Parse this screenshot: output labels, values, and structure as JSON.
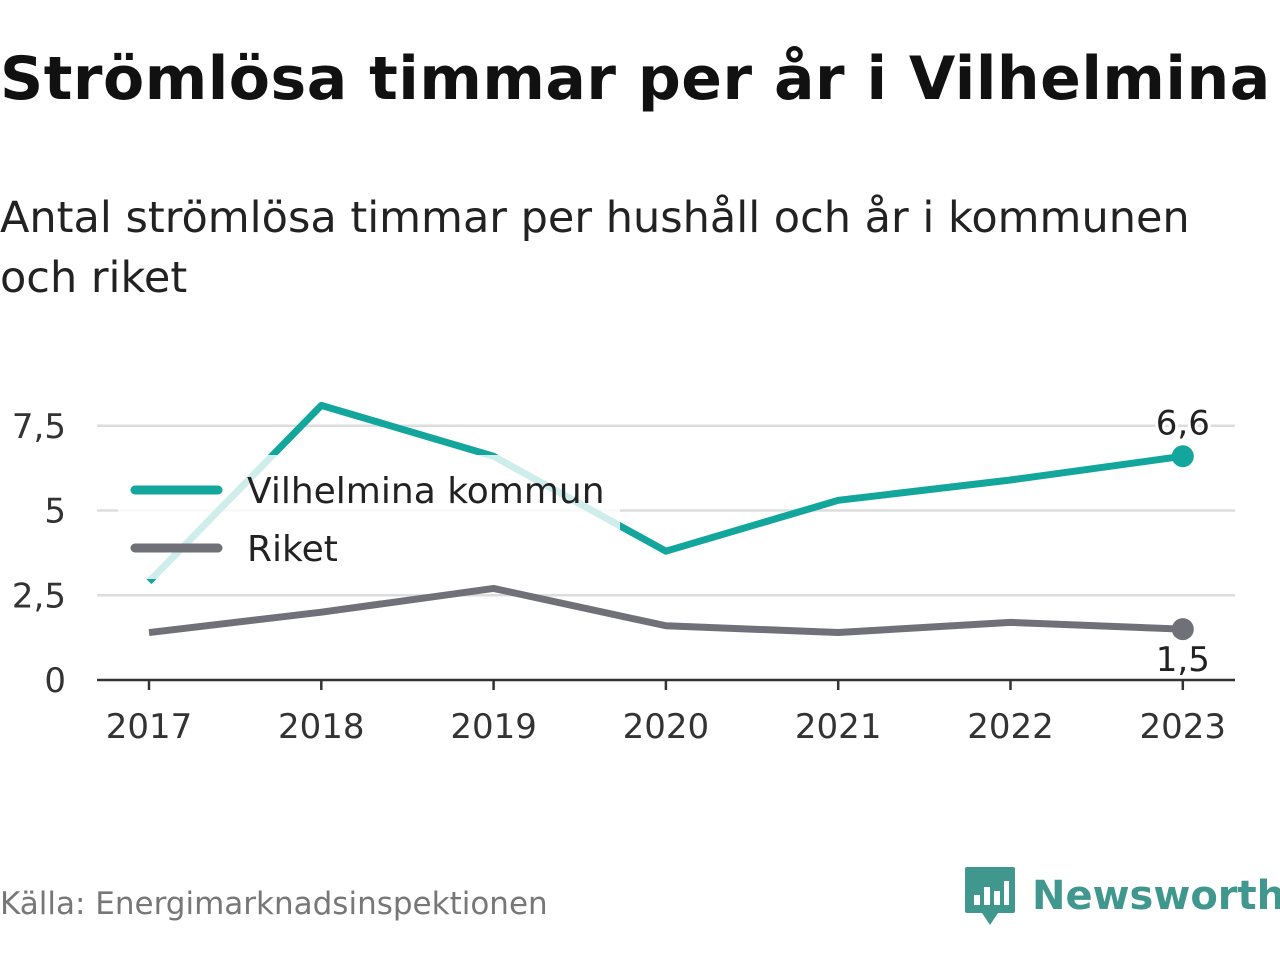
{
  "title": "Strömlösa timmar per år i Vilhelmina",
  "subtitle": "Antal strömlösa timmar per hushåll och år i kommunen och riket",
  "source": "Källa: Energimarknadsinspektionen",
  "brand": {
    "name": "Newsworthy",
    "icon": "newsworthy-logo-icon",
    "color": "#3f978e"
  },
  "chart_data": {
    "type": "line",
    "x": [
      "2017",
      "2018",
      "2019",
      "2020",
      "2021",
      "2022",
      "2023"
    ],
    "series": [
      {
        "name": "Vilhelmina kommun",
        "color": "#12a69c",
        "values": [
          2.9,
          8.1,
          6.6,
          3.8,
          5.3,
          5.9,
          6.6
        ],
        "end_label": "6,6"
      },
      {
        "name": "Riket",
        "color": "#707078",
        "values": [
          1.4,
          2.0,
          2.7,
          1.6,
          1.4,
          1.7,
          1.5
        ],
        "end_label": "1,5"
      }
    ],
    "ylim": [
      0,
      8.1
    ],
    "yticks": [
      0,
      2.5,
      5,
      7.5
    ],
    "ytick_labels": [
      "0",
      "2,5",
      "5",
      "7,5"
    ],
    "grid": true,
    "legend": "top-left",
    "xlabel": "",
    "ylabel": ""
  }
}
